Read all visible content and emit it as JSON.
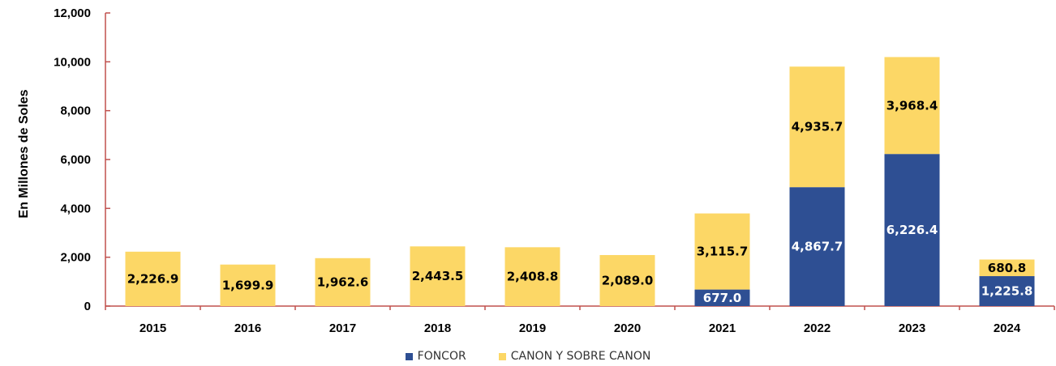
{
  "colors": {
    "foncor": "#2E4F93",
    "canon": "#FCD766",
    "axis": "#C0504D"
  },
  "chart_data": {
    "type": "bar",
    "stacked": true,
    "categories": [
      "2015",
      "2016",
      "2017",
      "2018",
      "2019",
      "2020",
      "2021",
      "2022",
      "2023",
      "2024"
    ],
    "series": [
      {
        "name": "FONCOR",
        "values": [
          0,
          0,
          0,
          0,
          0,
          0,
          677.0,
          4867.7,
          6226.4,
          1225.8
        ],
        "labels": [
          "",
          "",
          "",
          "",
          "",
          "",
          "677.0",
          "4,867.7",
          "6,226.4",
          "1,225.8"
        ]
      },
      {
        "name": "CANON Y SOBRE CANON",
        "values": [
          2226.9,
          1699.9,
          1962.6,
          2443.5,
          2408.8,
          2089.0,
          3115.7,
          4935.7,
          3968.4,
          680.8
        ],
        "labels": [
          "2,226.9",
          "1,699.9",
          "1,962.6",
          "2,443.5",
          "2,408.8",
          "2,089.0",
          "3,115.7",
          "4,935.7",
          "3,968.4",
          "680.8"
        ]
      }
    ],
    "ylabel": "En Millones de Soles",
    "ylim": [
      0,
      12000
    ],
    "yticks": [
      "0",
      "2,000",
      "4,000",
      "6,000",
      "8,000",
      "10,000",
      "12,000"
    ],
    "legend_position": "bottom"
  }
}
